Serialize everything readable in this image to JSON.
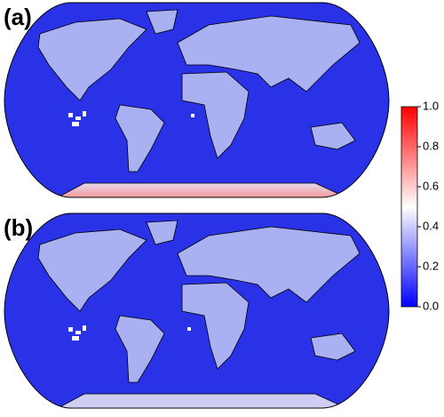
{
  "panels": [
    {
      "label": "(a)"
    },
    {
      "label": "(b)"
    }
  ],
  "colorbar": {
    "lim": [
      0,
      1
    ],
    "colors": [
      "#0000ff",
      "#ffffff",
      "#ff0000"
    ],
    "ticks": [
      {
        "value": 0,
        "label": "0.0"
      },
      0.2,
      0.4,
      0.6,
      0.8,
      {
        "value": 1,
        "label": "1.0"
      }
    ]
  }
}
